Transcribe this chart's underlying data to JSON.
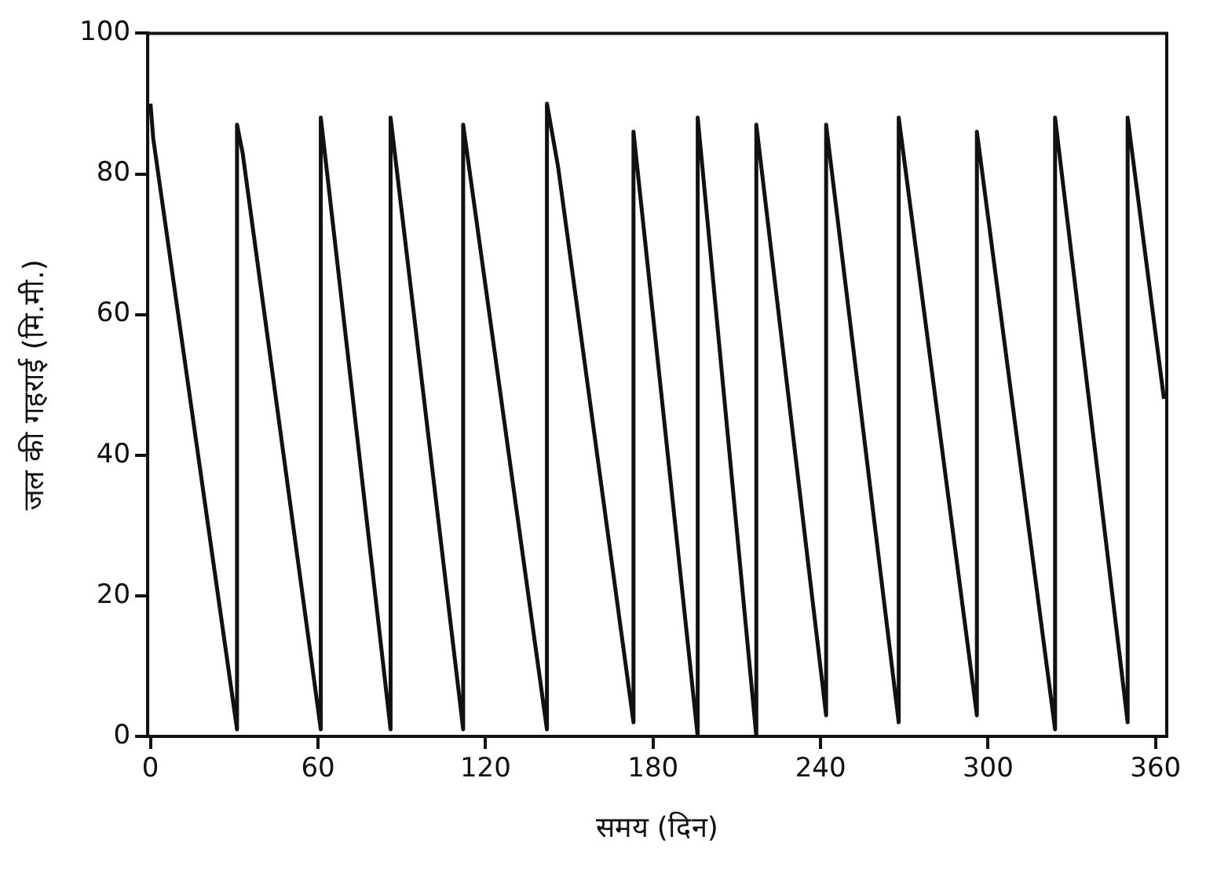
{
  "chart_data": {
    "type": "line",
    "xlabel": "समय (दिन)",
    "ylabel": "जल की गहराई (मि.मी.)",
    "series": [
      {
        "color": "#111111",
        "x": [
          0,
          1,
          31,
          31,
          33,
          61,
          61,
          86,
          86,
          112,
          112,
          142,
          142,
          146,
          173,
          173,
          196,
          196,
          217,
          217,
          242,
          242,
          268,
          268,
          296,
          296,
          324,
          324,
          350,
          350,
          363
        ],
        "values": [
          90,
          85,
          1,
          87,
          83,
          1,
          88,
          1,
          88,
          1,
          87,
          1,
          90,
          81,
          2,
          86,
          0,
          88,
          0,
          87,
          3,
          87,
          2,
          88,
          3,
          86,
          1,
          88,
          2,
          88,
          48
        ]
      }
    ],
    "xlim": [
      -1,
      364
    ],
    "xticks": [
      0,
      60,
      120,
      180,
      240,
      300,
      360
    ],
    "ylim": [
      0,
      100
    ],
    "yticks": [
      0,
      20,
      40,
      60,
      80,
      100
    ],
    "grid": false,
    "legend": false,
    "marker": "none",
    "line_style": "solid"
  }
}
